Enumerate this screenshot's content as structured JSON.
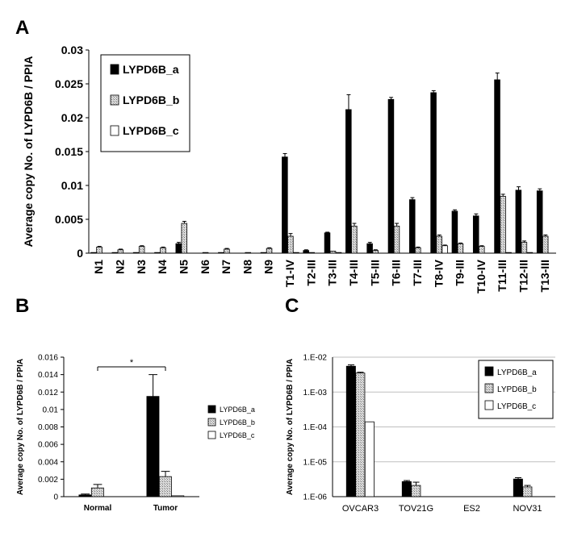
{
  "panels": [
    "A",
    "B",
    "C"
  ],
  "chart_data": [
    {
      "type": "bar",
      "panel": "A",
      "ylabel": "Average copy No. of LYPD6B / PPIA",
      "xlabel": "",
      "ylim": [
        0,
        0.03
      ],
      "yticks": [
        0,
        0.005,
        0.01,
        0.015,
        0.02,
        0.025,
        0.03
      ],
      "ytick_labels": [
        "0",
        "0.005",
        "0.01",
        "0.015",
        "0.02",
        "0.025",
        "0.03"
      ],
      "grid": false,
      "legend_position": "top-left",
      "categories": [
        "N1",
        "N2",
        "N3",
        "N4",
        "N5",
        "N6",
        "N7",
        "N8",
        "N9",
        "T1-IV",
        "T2-III",
        "T3-III",
        "T4-III",
        "T5-III",
        "T6-III",
        "T7-III",
        "T8-IV",
        "T9-III",
        "T10-IV",
        "T11-III",
        "T12-III",
        "T13-III"
      ],
      "series": [
        {
          "name": "LYPD6B_a",
          "color": "#000000",
          "values": [
            0.0001,
            0.0001,
            0.0001,
            0.0001,
            0.0014,
            0.0,
            0.0001,
            0.0,
            0.0001,
            0.0142,
            0.0004,
            0.003,
            0.0212,
            0.0014,
            0.0227,
            0.0079,
            0.0237,
            0.0062,
            0.0055,
            0.0256,
            0.0093,
            0.0092
          ],
          "errors": [
            0,
            0,
            0,
            0,
            0.0002,
            0,
            0,
            0,
            0,
            0.0005,
            0.0001,
            0.0001,
            0.0022,
            0.0002,
            0.0003,
            0.0003,
            0.0003,
            0.0002,
            0.0003,
            0.001,
            0.0005,
            0.0003
          ]
        },
        {
          "name": "LYPD6B_b",
          "color": "#cccccc",
          "values": [
            0.0009,
            0.0005,
            0.001,
            0.0008,
            0.0044,
            0.0001,
            0.0006,
            0.0001,
            0.0007,
            0.0025,
            0.0001,
            0.0003,
            0.004,
            0.0004,
            0.004,
            0.0008,
            0.0025,
            0.0014,
            0.001,
            0.0084,
            0.0016,
            0.0025
          ],
          "errors": [
            0.0001,
            0.0001,
            0.0001,
            0.0001,
            0.0003,
            0,
            0.0001,
            0,
            0.0001,
            0.0004,
            0,
            0,
            0.0004,
            0.0001,
            0.0004,
            0.0001,
            0.0002,
            0.0001,
            0.0001,
            0.0003,
            0.0002,
            0.0002
          ]
        },
        {
          "name": "LYPD6B_c",
          "color": "#ffffff",
          "values": [
            0,
            0,
            0,
            0,
            0,
            0,
            0,
            0,
            0,
            0.0001,
            0,
            0.0001,
            0,
            0,
            0,
            0,
            0.0011,
            0,
            0,
            0.0001,
            0.0001,
            0
          ],
          "errors": [
            0,
            0,
            0,
            0,
            0,
            0,
            0,
            0,
            0,
            0,
            0,
            0,
            0,
            0,
            0,
            0,
            0.0001,
            0,
            0,
            0,
            0,
            0
          ]
        }
      ]
    },
    {
      "type": "bar",
      "panel": "B",
      "ylabel": "Average copy No. of LYPD6B / PPIA",
      "xlabel": "",
      "ylim": [
        0,
        0.016
      ],
      "yticks": [
        0,
        0.002,
        0.004,
        0.006,
        0.008,
        0.01,
        0.012,
        0.014,
        0.016
      ],
      "ytick_labels": [
        "0",
        "0.002",
        "0.004",
        "0.006",
        "0.008",
        "0.01",
        "0.012",
        "0.014",
        "0.016"
      ],
      "grid": false,
      "legend_position": "right",
      "annotation": "*",
      "categories": [
        "Normal",
        "Tumor"
      ],
      "series": [
        {
          "name": "LYPD6B_a",
          "color": "#000000",
          "values": [
            0.0002,
            0.0115
          ],
          "errors": [
            0.0001,
            0.0025
          ]
        },
        {
          "name": "LYPD6B_b",
          "color": "#cccccc",
          "values": [
            0.001,
            0.0023
          ],
          "errors": [
            0.0004,
            0.0006
          ]
        },
        {
          "name": "LYPD6B_c",
          "color": "#ffffff",
          "values": [
            0.0,
            0.0001
          ],
          "errors": [
            0,
            0
          ]
        }
      ]
    },
    {
      "type": "bar",
      "panel": "C",
      "ylabel": "Average copy No. of LYPD6B / PPIA",
      "xlabel": "",
      "log_scale": true,
      "ylim": [
        1e-06,
        0.01
      ],
      "yticks": [
        1e-06,
        1e-05,
        0.0001,
        0.001,
        0.01
      ],
      "ytick_labels": [
        "1.E-06",
        "1.E-05",
        "1.E-04",
        "1.E-03",
        "1.E-02"
      ],
      "grid": true,
      "legend_position": "top-right",
      "categories": [
        "OVCAR3",
        "TOV21G",
        "ES2",
        "NOV31"
      ],
      "series": [
        {
          "name": "LYPD6B_a",
          "color": "#000000",
          "values": [
            0.0055,
            2.7e-06,
            null,
            3.2e-06
          ],
          "errors": [
            0.0005,
            2e-07,
            null,
            3e-07
          ]
        },
        {
          "name": "LYPD6B_b",
          "color": "#cccccc",
          "values": [
            0.0035,
            2.1e-06,
            null,
            1.9e-06
          ],
          "errors": [
            0.0002,
            5e-07,
            null,
            2e-07
          ]
        },
        {
          "name": "LYPD6B_c",
          "color": "#ffffff",
          "values": [
            0.00014,
            null,
            null,
            null
          ],
          "errors": [
            0,
            null,
            null,
            null
          ]
        }
      ]
    }
  ]
}
